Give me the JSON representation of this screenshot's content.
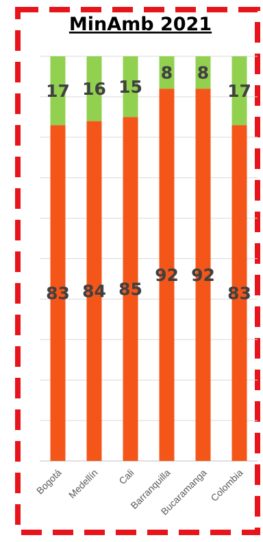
{
  "chart_data": {
    "type": "bar",
    "stacked": true,
    "title": "MinAmb 2021",
    "xlabel": "",
    "ylabel": "",
    "ylim": [
      0,
      100
    ],
    "grid": true,
    "legend": "none",
    "categories": [
      "Bogotá",
      "Medellín",
      "Cali",
      "Barranquilla",
      "Bucaramanga",
      "Colombia"
    ],
    "series": [
      {
        "values": [
          83,
          84,
          85,
          92,
          92,
          83
        ],
        "color": "#f4561a"
      },
      {
        "values": [
          17,
          16,
          15,
          8,
          8,
          17
        ],
        "color": "#92d050"
      }
    ]
  },
  "colors": {
    "frame": "#e8141b",
    "grid": "#d9d9d9",
    "axis": "#bfbfbf"
  }
}
